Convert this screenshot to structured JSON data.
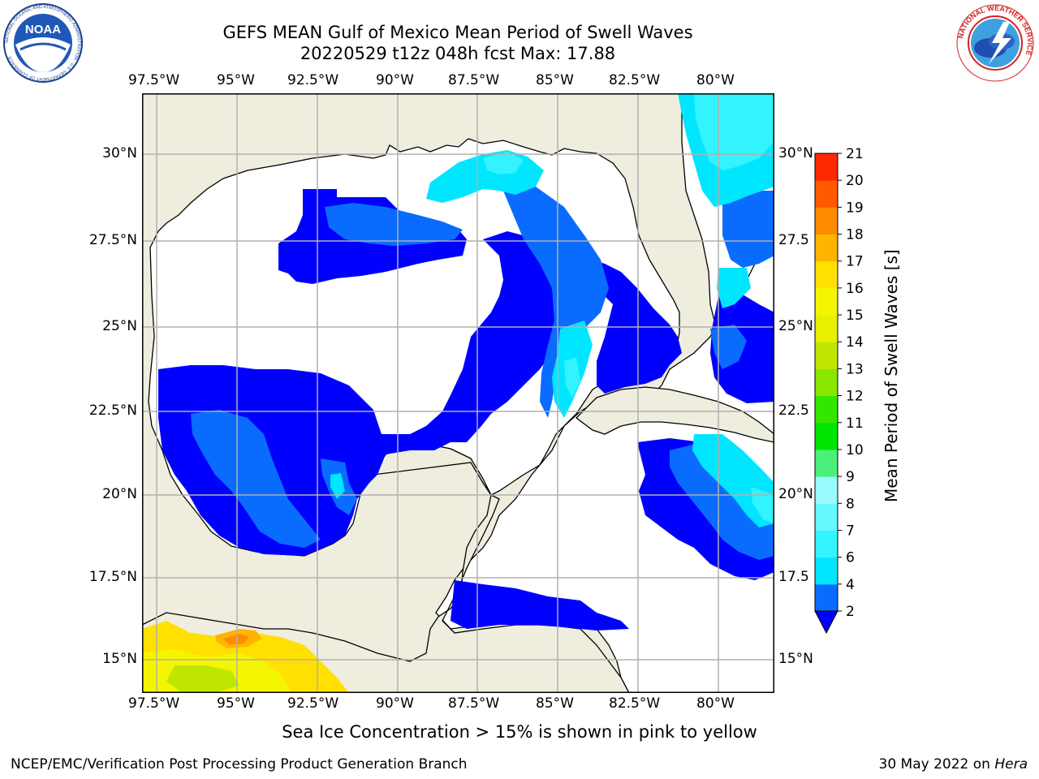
{
  "header": {
    "title_line1": "GEFS MEAN Gulf of Mexico Mean Period of Swell Waves",
    "title_line2": "20220529 t12z 048h fcst   Max: 17.88"
  },
  "logos": {
    "noaa": {
      "text": "NOAA",
      "ring_text": "NATIONAL OCEANIC AND ATMOSPHERIC ADMINISTRATION · U.S. DEPARTMENT OF COMMERCE"
    },
    "nws": {
      "ring_text": "NATIONAL WEATHER SERVICE"
    }
  },
  "map": {
    "lon_ticks": [
      "97.5°W",
      "95°W",
      "92.5°W",
      "90°W",
      "87.5°W",
      "85°W",
      "82.5°W",
      "80°W"
    ],
    "lat_ticks_left": [
      "30°N",
      "27.5°N",
      "25°N",
      "22.5°N",
      "20°N",
      "17.5°N",
      "15°N"
    ],
    "lat_ticks_right": [
      "30°N",
      "27.5",
      "25°N",
      "22.5",
      "20°N",
      "17.5",
      "15°N"
    ],
    "colors": {
      "land": "#efedde",
      "water_nodata": "#ffffff",
      "grid": "#b0b0b0",
      "coast": "#000000"
    }
  },
  "colorbar": {
    "label": "Mean Period of Swell Waves [s]",
    "ticks": [
      "2",
      "4",
      "6",
      "7",
      "8",
      "9",
      "10",
      "11",
      "12",
      "13",
      "14",
      "15",
      "16",
      "17",
      "18",
      "19",
      "20",
      "21"
    ],
    "colors": [
      "#0a6cff",
      "#00e6ff",
      "#33f3ff",
      "#66f7ff",
      "#99fbff",
      "#4bef7a",
      "#00e600",
      "#33e600",
      "#88e600",
      "#bfe600",
      "#e6f000",
      "#f5f500",
      "#ffe000",
      "#ffb400",
      "#ff8c00",
      "#ff5a00",
      "#ff2800",
      "#ff0000"
    ],
    "under_color": "#0000ff"
  },
  "footer": {
    "ice_note": "Sea Ice Concentration > 15% is shown in pink to yellow",
    "credit": "NCEP/EMC/Verification Post Processing Product Generation Branch",
    "date_prefix": "30 May 2022 on ",
    "date_host": "Hera"
  }
}
